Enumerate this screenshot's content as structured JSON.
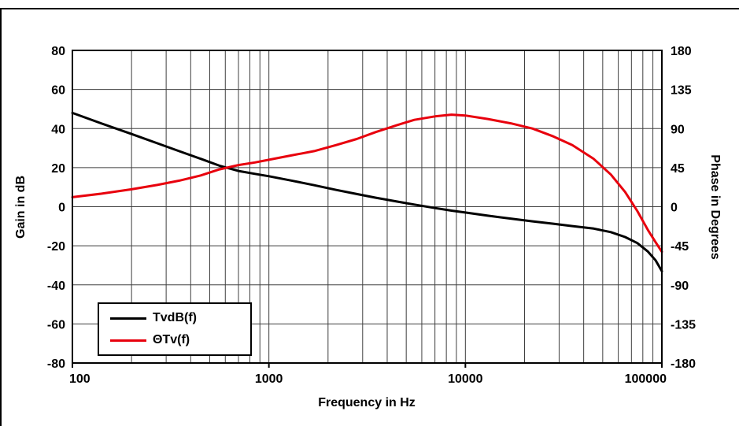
{
  "chart_data": {
    "type": "line",
    "title": "",
    "x_axis": {
      "label": "Frequency in Hz",
      "scale": "log",
      "min": 100,
      "max": 100000,
      "tick_values": [
        100,
        1000,
        10000,
        100000
      ],
      "tick_labels": [
        "100",
        "1000",
        "10000",
        "100000"
      ]
    },
    "y_left_axis": {
      "label": "Gain in dB",
      "min": -80,
      "max": 80,
      "tick_values": [
        80,
        60,
        40,
        20,
        0,
        -20,
        -40,
        -60,
        -80
      ]
    },
    "y_right_axis": {
      "label": "Phase in Degrees",
      "min": -180,
      "max": 180,
      "tick_values": [
        180,
        135,
        90,
        45,
        0,
        -45,
        -90,
        -135,
        -180
      ]
    },
    "grid": true,
    "legend": {
      "position": "bottom-left",
      "entries": [
        "TvdB(f)",
        "ΘTv(f)"
      ]
    },
    "colors": {
      "background": "#ffffff",
      "grid": "#3f3f3f",
      "axis": "#000000",
      "gain_curve": "#000000",
      "phase_curve": "#e8000d"
    },
    "series": [
      {
        "name": "TvdB(f)",
        "axis": "left",
        "units": "dB",
        "color": "#000000",
        "points": [
          [
            100,
            48
          ],
          [
            140,
            42.7
          ],
          [
            200,
            37.2
          ],
          [
            270,
            32.5
          ],
          [
            350,
            28.4
          ],
          [
            450,
            24.5
          ],
          [
            560,
            21.0
          ],
          [
            700,
            18.3
          ],
          [
            850,
            16.8
          ],
          [
            1000,
            15.6
          ],
          [
            1300,
            13.4
          ],
          [
            1700,
            11.0
          ],
          [
            2200,
            8.6
          ],
          [
            2800,
            6.5
          ],
          [
            3500,
            4.6
          ],
          [
            4500,
            2.6
          ],
          [
            5500,
            1.1
          ],
          [
            7000,
            -0.7
          ],
          [
            8500,
            -2.0
          ],
          [
            10000,
            -3.0
          ],
          [
            13000,
            -4.6
          ],
          [
            17000,
            -6.1
          ],
          [
            22000,
            -7.5
          ],
          [
            28000,
            -8.7
          ],
          [
            35000,
            -9.9
          ],
          [
            45000,
            -11.2
          ],
          [
            55000,
            -13.0
          ],
          [
            65000,
            -15.5
          ],
          [
            75000,
            -18.6
          ],
          [
            85000,
            -23.0
          ],
          [
            93000,
            -27.5
          ],
          [
            100000,
            -33
          ]
        ]
      },
      {
        "name": "ΘTv(f)",
        "axis": "right",
        "units": "degrees",
        "color": "#e8000d",
        "points": [
          [
            100,
            11
          ],
          [
            140,
            15
          ],
          [
            200,
            20
          ],
          [
            270,
            25
          ],
          [
            350,
            30
          ],
          [
            450,
            36
          ],
          [
            560,
            43
          ],
          [
            700,
            48
          ],
          [
            850,
            51
          ],
          [
            1000,
            54
          ],
          [
            1300,
            59
          ],
          [
            1700,
            64
          ],
          [
            2200,
            71
          ],
          [
            2800,
            78
          ],
          [
            3500,
            86
          ],
          [
            4500,
            94
          ],
          [
            5500,
            100
          ],
          [
            7000,
            104
          ],
          [
            8500,
            106
          ],
          [
            10000,
            105
          ],
          [
            13000,
            101
          ],
          [
            17000,
            96
          ],
          [
            22000,
            90
          ],
          [
            28000,
            81
          ],
          [
            35000,
            71
          ],
          [
            45000,
            55
          ],
          [
            55000,
            37
          ],
          [
            65000,
            17
          ],
          [
            75000,
            -5
          ],
          [
            85000,
            -27
          ],
          [
            93000,
            -41
          ],
          [
            100000,
            -52
          ]
        ]
      }
    ]
  }
}
